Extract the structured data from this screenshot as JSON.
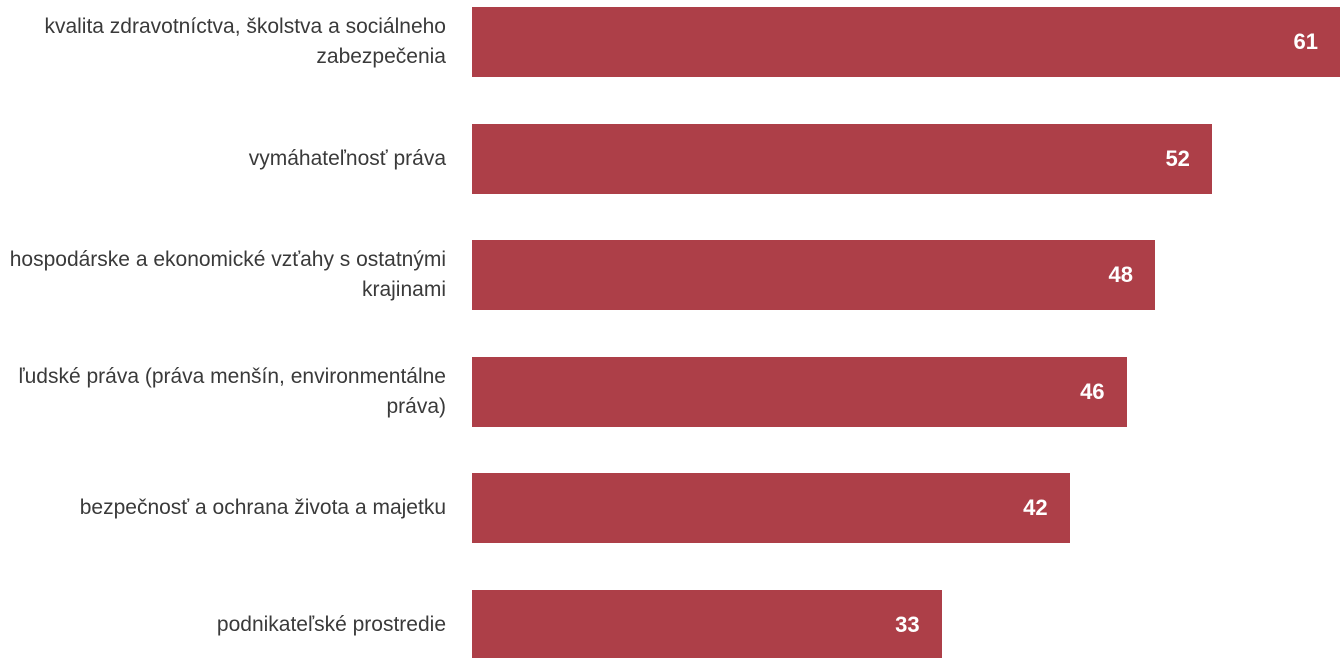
{
  "chart_data": {
    "type": "bar",
    "orientation": "horizontal",
    "categories": [
      "kvalita zdravotníctva, školstva a sociálneho zabezpečenia",
      "vymáhateľnosť práva",
      "hospodárske a ekonomické vzťahy s ostatnými krajinami",
      "ľudské práva (práva menšín, environmentálne práva)",
      "bezpečnosť a ochrana života a majetku",
      "podnikateľské prostredie"
    ],
    "values": [
      61,
      52,
      48,
      46,
      42,
      33
    ],
    "color": "#ad3f48"
  }
}
